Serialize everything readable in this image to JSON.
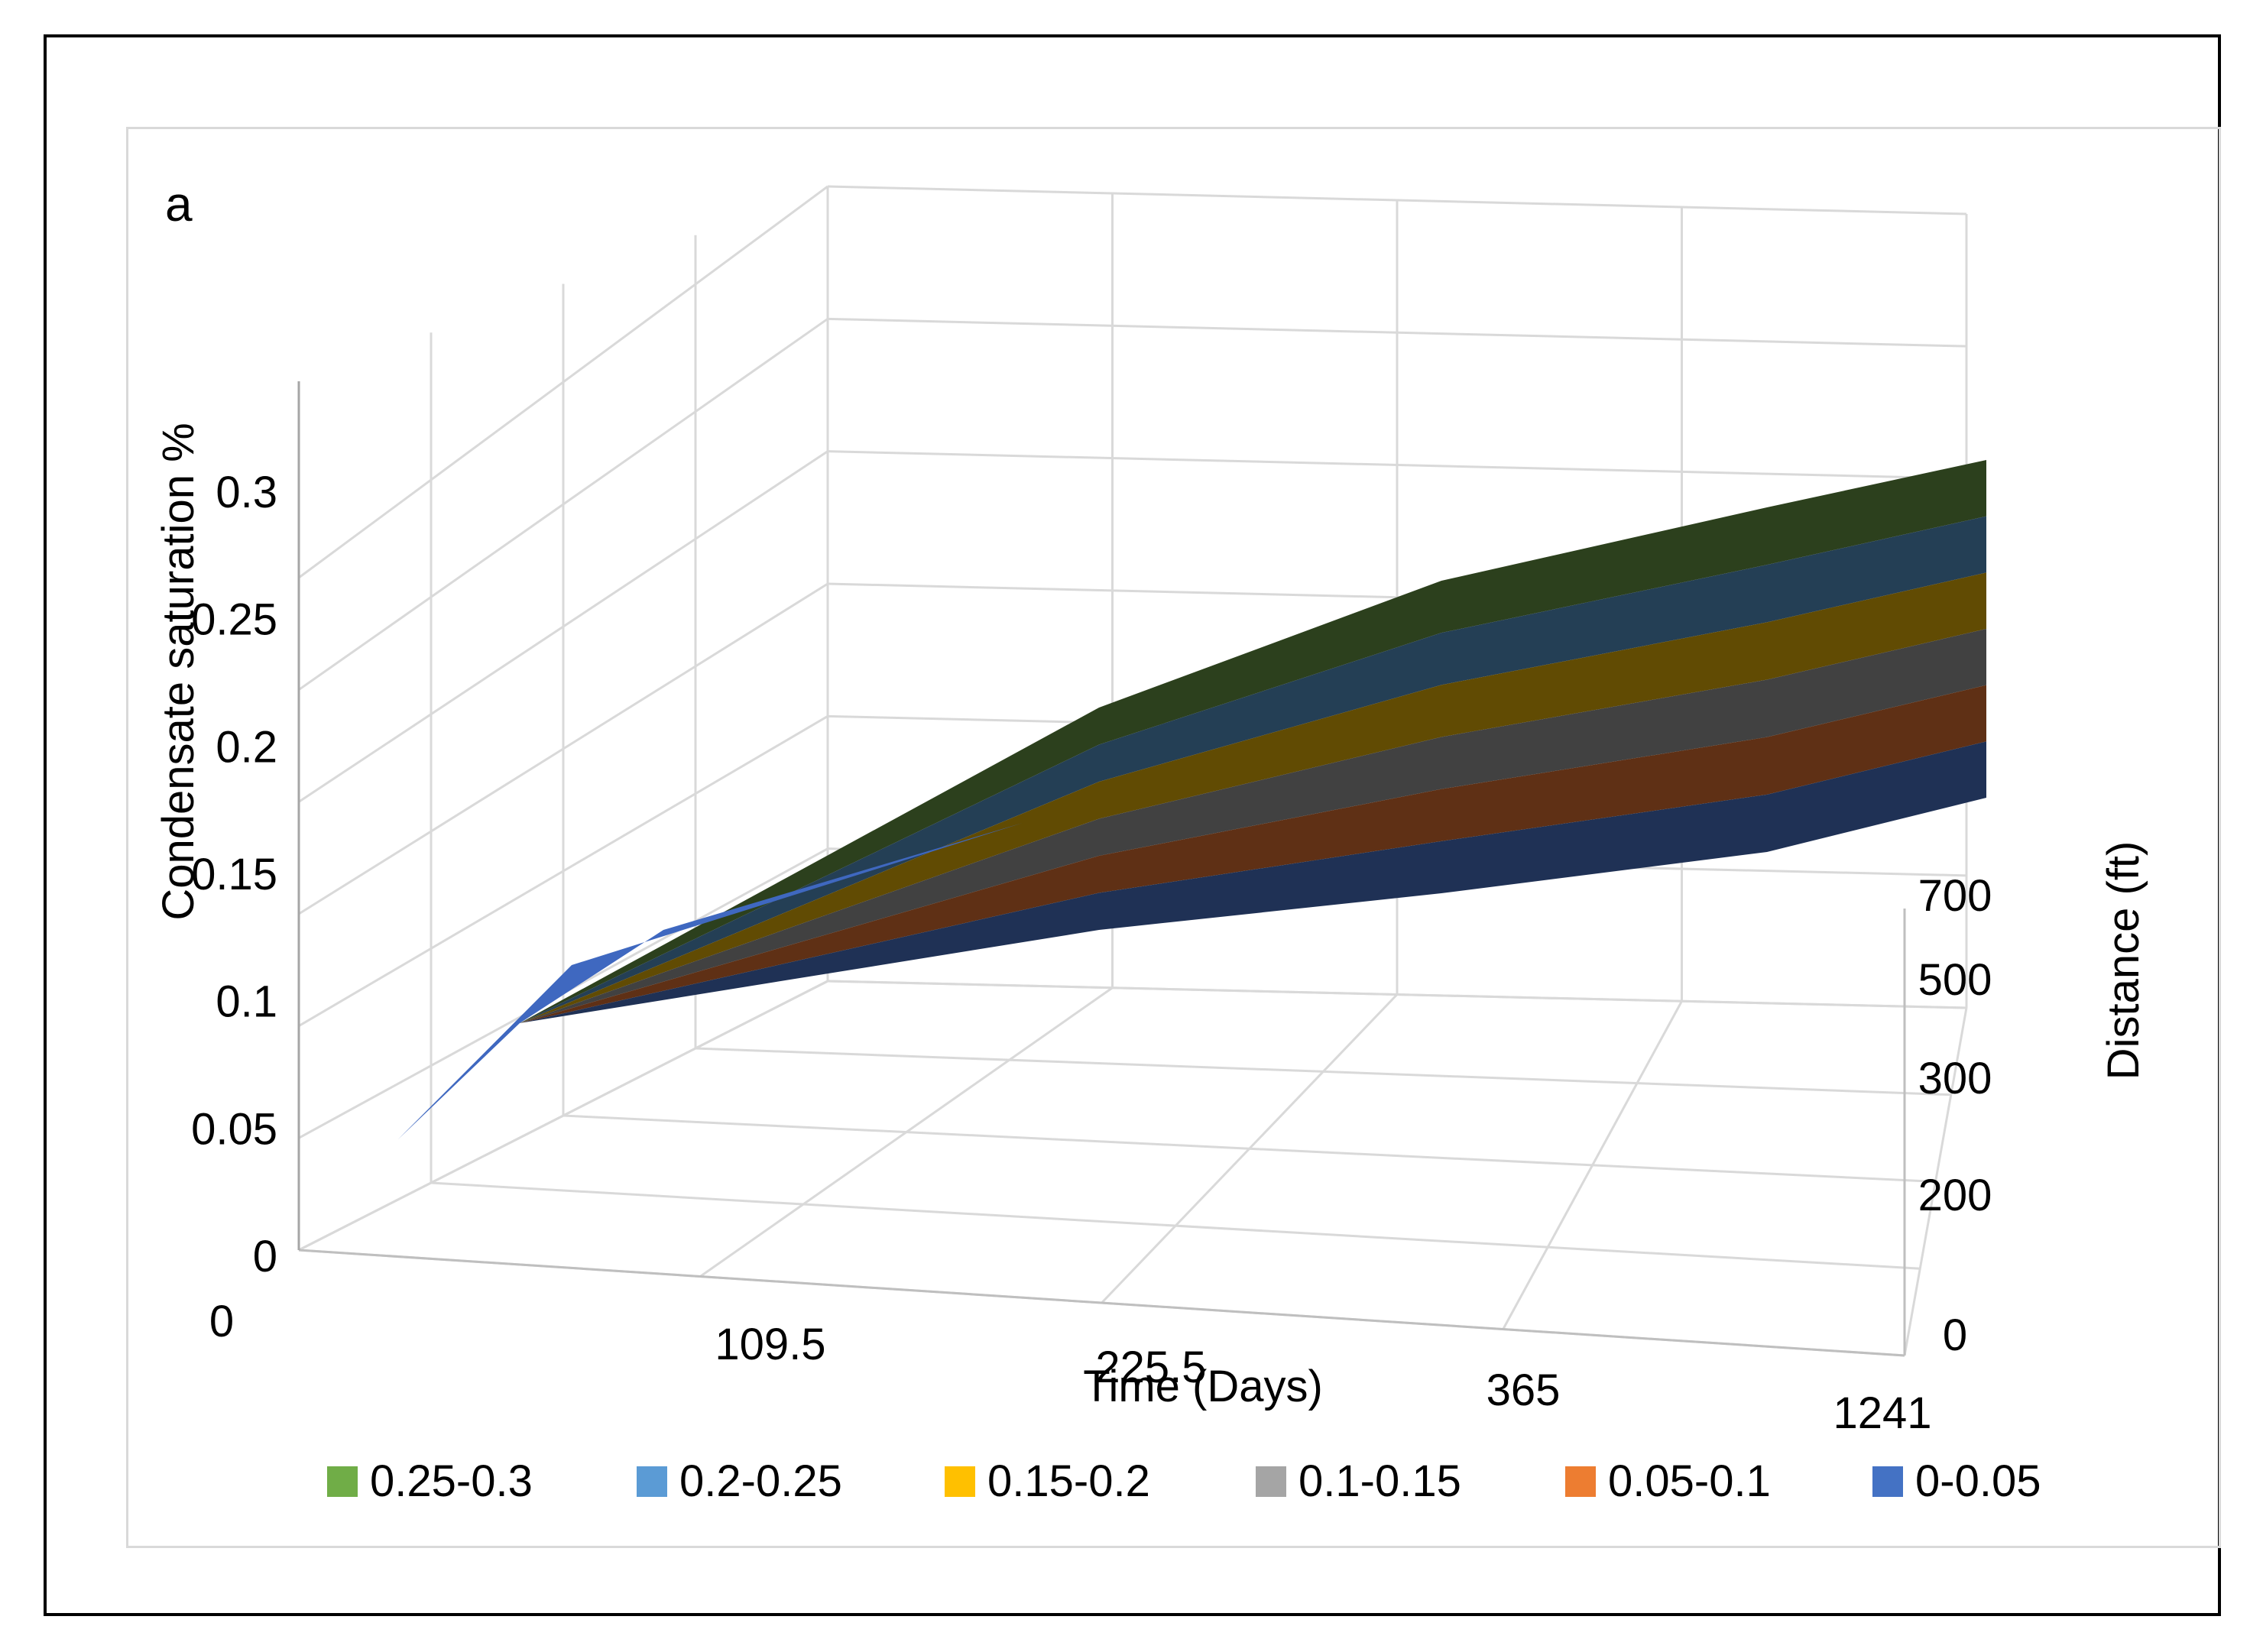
{
  "panel_label": "a",
  "chart_data": {
    "type": "surface",
    "title": "",
    "xlabel": "Time (Days)",
    "ylabel": "Distance (ft)",
    "zlabel": "Condensate saturation %",
    "x_categories": [
      "0",
      "109.5",
      "225.5",
      "365",
      "1241"
    ],
    "y_categories": [
      "0",
      "200",
      "300",
      "500",
      "700"
    ],
    "z_ticks": [
      "0",
      "0.05",
      "0.1",
      "0.15",
      "0.2",
      "0.25",
      "0.3"
    ],
    "zlim": [
      0,
      0.3
    ],
    "grid": true,
    "legend_position": "bottom",
    "series": [
      {
        "name": "0.25-0.3",
        "color": "#70ad47",
        "surface_color": "#2c401d"
      },
      {
        "name": "0.2-0.25",
        "color": "#5b9bd5",
        "surface_color": "#243f55"
      },
      {
        "name": "0.15-0.2",
        "color": "#ffc000",
        "surface_color": "#614b03"
      },
      {
        "name": "0.1-0.15",
        "color": "#a5a5a5",
        "surface_color": "#414141"
      },
      {
        "name": "0.05-0.1",
        "color": "#ed7d31",
        "surface_color": "#5f3015"
      },
      {
        "name": "0-0.05",
        "color": "#4472c4",
        "surface_color": "#1f3155"
      }
    ],
    "values": [
      [
        0,
        0.07,
        0.09,
        0.12,
        0.18
      ],
      [
        0,
        0.09,
        0.13,
        0.17,
        0.2
      ],
      [
        0,
        0.11,
        0.15,
        0.19,
        0.23
      ],
      [
        0,
        0.12,
        0.16,
        0.2,
        0.26
      ],
      [
        0,
        0.16,
        0.2,
        0.24,
        0.28
      ]
    ]
  }
}
